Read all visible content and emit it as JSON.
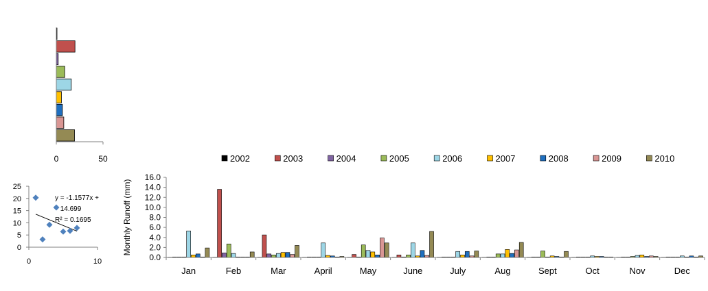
{
  "chart_data": [
    {
      "type": "bar",
      "orientation": "horizontal",
      "categories": [
        "2002",
        "2003",
        "2004",
        "2005",
        "2006",
        "2007",
        "2008",
        "2009",
        "2010"
      ],
      "values": [
        0.5,
        20,
        2,
        9,
        16,
        5.5,
        6.5,
        8,
        19.5
      ],
      "colors": [
        "#000000",
        "#C0504D",
        "#8064A2",
        "#9BBB59",
        "#9DD6E6",
        "#FFC000",
        "#1F6FBF",
        "#D99694",
        "#948A54"
      ],
      "xlim": [
        0,
        50
      ],
      "xticks": [
        "0",
        "50"
      ],
      "grid": false
    },
    {
      "type": "scatter",
      "points": [
        {
          "x": 1,
          "y": 20.3
        },
        {
          "x": 2,
          "y": 3.2
        },
        {
          "x": 3,
          "y": 9.2
        },
        {
          "x": 4,
          "y": 16.3
        },
        {
          "x": 5,
          "y": 6.4
        },
        {
          "x": 6,
          "y": 6.7
        },
        {
          "x": 7,
          "y": 7.9
        }
      ],
      "marker_color": "#4F81BD",
      "trendline": {
        "slope": -1.1577,
        "intercept": 14.699
      },
      "annotation": [
        "y = -1.1577x +",
        "14.699",
        "R² = 0.1695"
      ],
      "xlim": [
        0,
        10
      ],
      "ylim": [
        0,
        25
      ],
      "xticks": [
        "0",
        "10"
      ],
      "yticks": [
        "0",
        "5",
        "10",
        "15",
        "20",
        "25"
      ],
      "grid": false
    },
    {
      "type": "bar",
      "categories": [
        "Jan",
        "Feb",
        "Mar",
        "April",
        "May",
        "June",
        "July",
        "Aug",
        "Sept",
        "Oct",
        "Nov",
        "Dec"
      ],
      "series": [
        {
          "name": "2002",
          "color": "#000000",
          "values": [
            0.05,
            0.05,
            0.05,
            0.05,
            0.05,
            0.05,
            0.05,
            0.05,
            0.05,
            0.05,
            0.05,
            0.05
          ]
        },
        {
          "name": "2003",
          "color": "#C0504D",
          "values": [
            0.1,
            13.6,
            4.5,
            0.1,
            0.6,
            0.5,
            0.1,
            0.1,
            0.1,
            0.1,
            0.1,
            0.1
          ]
        },
        {
          "name": "2004",
          "color": "#8064A2",
          "values": [
            0.1,
            0.9,
            0.7,
            0.1,
            0.1,
            0.1,
            0.1,
            0.1,
            0.1,
            0.1,
            0.1,
            0.1
          ]
        },
        {
          "name": "2005",
          "color": "#9BBB59",
          "values": [
            0.1,
            2.7,
            0.5,
            0.1,
            2.5,
            0.5,
            0.1,
            0.7,
            1.3,
            0.1,
            0.2,
            0.1
          ]
        },
        {
          "name": "2006",
          "color": "#9DD6E6",
          "values": [
            5.3,
            0.8,
            0.8,
            2.9,
            1.4,
            2.9,
            1.2,
            0.7,
            0.1,
            0.3,
            0.4,
            0.3
          ]
        },
        {
          "name": "2007",
          "color": "#FFC000",
          "values": [
            0.5,
            0.1,
            1.0,
            0.4,
            1.1,
            0.3,
            0.5,
            1.6,
            0.3,
            0.2,
            0.5,
            0.1
          ]
        },
        {
          "name": "2008",
          "color": "#1F6FBF",
          "values": [
            0.7,
            0.1,
            1.0,
            0.3,
            0.5,
            1.4,
            1.2,
            0.8,
            0.2,
            0.2,
            0.2,
            0.3
          ]
        },
        {
          "name": "2009",
          "color": "#D99694",
          "values": [
            0.1,
            0.1,
            0.6,
            0.1,
            3.9,
            0.4,
            0.3,
            1.5,
            0.1,
            0.1,
            0.3,
            0.1
          ]
        },
        {
          "name": "2010",
          "color": "#948A54",
          "values": [
            1.9,
            1.1,
            2.4,
            0.2,
            2.9,
            5.2,
            1.3,
            3.0,
            1.2,
            0.1,
            0.2,
            0.3
          ]
        }
      ],
      "ylabel": "Monthly  Runoff (mm)",
      "ylim": [
        0,
        16
      ],
      "yticks": [
        "0.0",
        "2.0",
        "4.0",
        "6.0",
        "8.0",
        "10.0",
        "12.0",
        "14.0",
        "16.0"
      ],
      "legend_position": "top",
      "grid": false
    }
  ]
}
